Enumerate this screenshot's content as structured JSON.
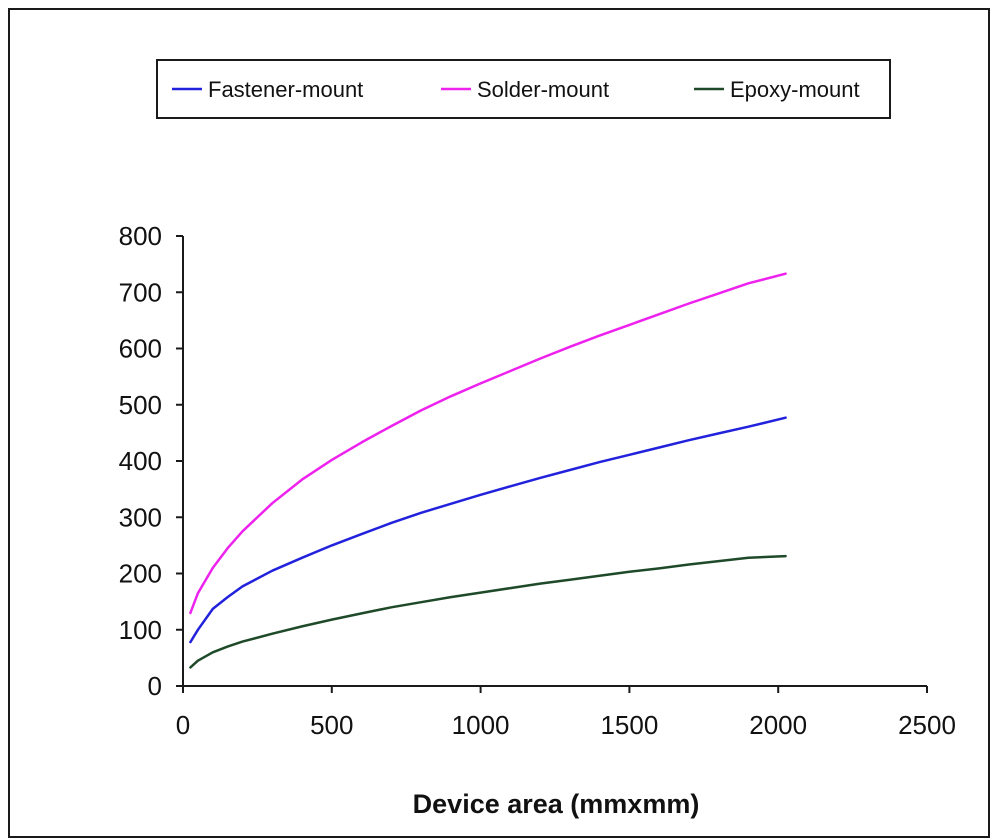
{
  "chart_data": {
    "type": "line",
    "title": "",
    "xlabel": "Device area (mmxmm)",
    "ylabel": "",
    "xlim": [
      0,
      2500
    ],
    "ylim": [
      0,
      800
    ],
    "xticks": [
      0,
      500,
      1000,
      1500,
      2000,
      2500
    ],
    "yticks": [
      0,
      100,
      200,
      300,
      400,
      500,
      600,
      700,
      800
    ],
    "grid": false,
    "legend_position": "top",
    "series": [
      {
        "name": "Fastener-mount",
        "color": "#2222dd",
        "points": [
          [
            25,
            78
          ],
          [
            50,
            100
          ],
          [
            100,
            137
          ],
          [
            150,
            158
          ],
          [
            200,
            177
          ],
          [
            300,
            205
          ],
          [
            400,
            228
          ],
          [
            500,
            250
          ],
          [
            600,
            270
          ],
          [
            700,
            290
          ],
          [
            800,
            308
          ],
          [
            900,
            324
          ],
          [
            1000,
            340
          ],
          [
            1100,
            355
          ],
          [
            1200,
            370
          ],
          [
            1300,
            384
          ],
          [
            1400,
            398
          ],
          [
            1500,
            411
          ],
          [
            1600,
            424
          ],
          [
            1700,
            437
          ],
          [
            1800,
            449
          ],
          [
            1900,
            461
          ],
          [
            2025,
            477
          ]
        ]
      },
      {
        "name": "Solder-mount",
        "color": "#ee22ee",
        "points": [
          [
            25,
            130
          ],
          [
            50,
            165
          ],
          [
            100,
            210
          ],
          [
            150,
            245
          ],
          [
            200,
            275
          ],
          [
            300,
            325
          ],
          [
            400,
            367
          ],
          [
            500,
            402
          ],
          [
            600,
            433
          ],
          [
            700,
            462
          ],
          [
            800,
            490
          ],
          [
            900,
            515
          ],
          [
            1000,
            538
          ],
          [
            1100,
            560
          ],
          [
            1200,
            582
          ],
          [
            1300,
            603
          ],
          [
            1400,
            623
          ],
          [
            1500,
            642
          ],
          [
            1600,
            661
          ],
          [
            1700,
            680
          ],
          [
            1800,
            698
          ],
          [
            1900,
            716
          ],
          [
            2025,
            733
          ]
        ]
      },
      {
        "name": "Epoxy-mount",
        "color": "#1f4a2a",
        "points": [
          [
            25,
            33
          ],
          [
            50,
            45
          ],
          [
            100,
            60
          ],
          [
            150,
            70
          ],
          [
            200,
            79
          ],
          [
            300,
            93
          ],
          [
            400,
            106
          ],
          [
            500,
            118
          ],
          [
            600,
            129
          ],
          [
            700,
            140
          ],
          [
            800,
            149
          ],
          [
            900,
            158
          ],
          [
            1000,
            166
          ],
          [
            1100,
            174
          ],
          [
            1200,
            182
          ],
          [
            1300,
            189
          ],
          [
            1400,
            196
          ],
          [
            1500,
            203
          ],
          [
            1600,
            209
          ],
          [
            1700,
            216
          ],
          [
            1800,
            222
          ],
          [
            1900,
            228
          ],
          [
            2025,
            231
          ]
        ]
      }
    ]
  }
}
